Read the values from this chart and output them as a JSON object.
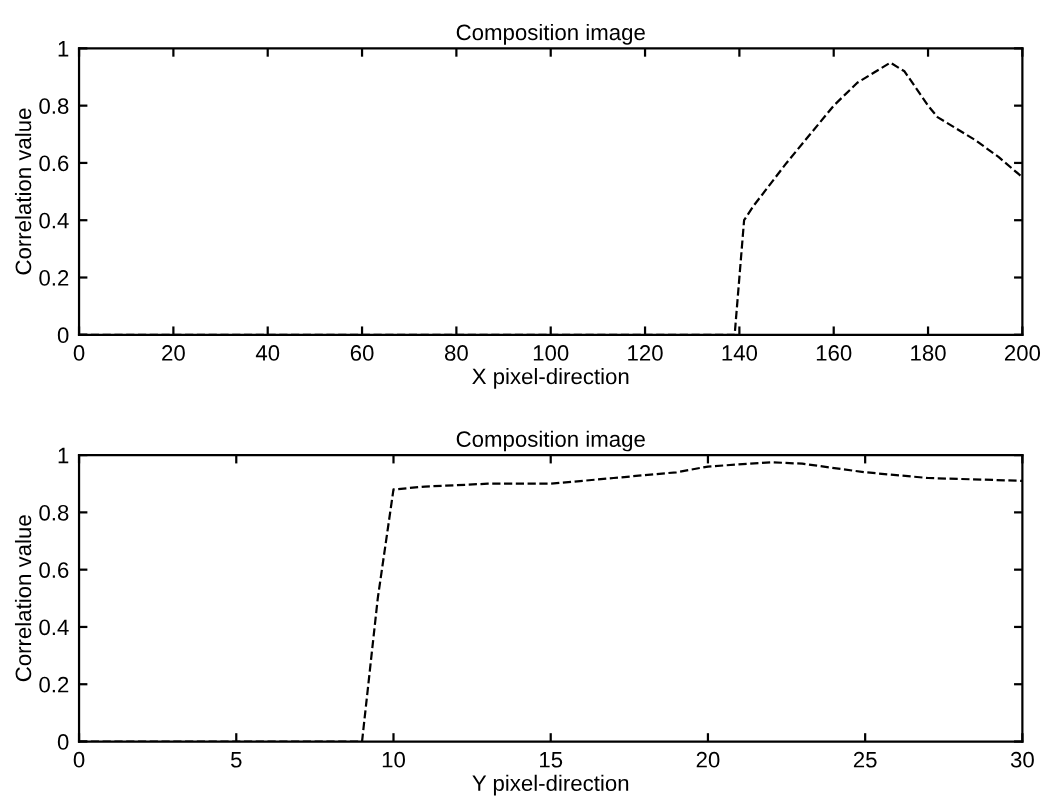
{
  "chart_data": [
    {
      "type": "line",
      "title": "Composition image",
      "xlabel": "X pixel-direction",
      "ylabel": "Correlation value",
      "x": [
        0,
        20,
        40,
        60,
        80,
        100,
        120,
        139,
        140,
        141,
        143,
        150,
        155,
        160,
        165,
        172,
        175,
        180,
        182,
        190,
        195,
        200
      ],
      "series": [
        {
          "color": "#000000",
          "values": [
            0,
            0,
            0,
            0,
            0,
            0,
            0,
            0,
            0.2,
            0.4,
            0.45,
            0.6,
            0.7,
            0.8,
            0.88,
            0.95,
            0.92,
            0.8,
            0.76,
            0.68,
            0.62,
            0.55
          ]
        }
      ],
      "xlim": [
        0,
        200
      ],
      "xticks": [
        0,
        20,
        40,
        60,
        80,
        100,
        120,
        140,
        160,
        180,
        200
      ],
      "ylim": [
        0,
        1
      ],
      "yticks": [
        0,
        0.2,
        0.4,
        0.6,
        0.8,
        1
      ],
      "grid": false,
      "line_style": "dashed"
    },
    {
      "type": "line",
      "title": "Composition image",
      "xlabel": "Y pixel-direction",
      "ylabel": "Correlation value",
      "x": [
        0,
        5,
        9,
        9.5,
        10,
        11,
        13,
        15,
        17,
        19,
        20,
        22,
        23,
        25,
        27,
        30
      ],
      "series": [
        {
          "color": "#000000",
          "values": [
            0,
            0,
            0,
            0.5,
            0.88,
            0.89,
            0.9,
            0.9,
            0.92,
            0.94,
            0.96,
            0.975,
            0.97,
            0.94,
            0.92,
            0.91
          ]
        }
      ],
      "xlim": [
        0,
        30
      ],
      "xticks": [
        0,
        5,
        10,
        15,
        20,
        25,
        30
      ],
      "ylim": [
        0,
        1
      ],
      "yticks": [
        0,
        0.2,
        0.4,
        0.6,
        0.8,
        1
      ],
      "grid": false,
      "line_style": "dashed"
    }
  ]
}
